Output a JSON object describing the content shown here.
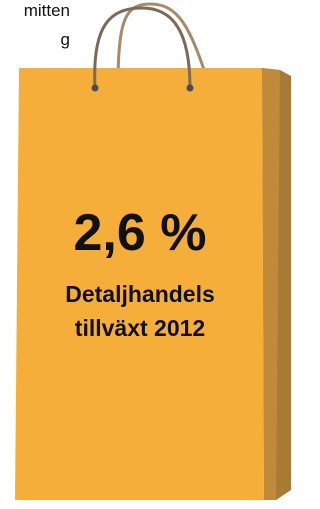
{
  "caption": {
    "lines": [
      "mitten",
      "g"
    ]
  },
  "bag": {
    "headline": "2,6 %",
    "label_lines": [
      "Detaljhandels",
      "tillväxt 2012"
    ]
  }
}
